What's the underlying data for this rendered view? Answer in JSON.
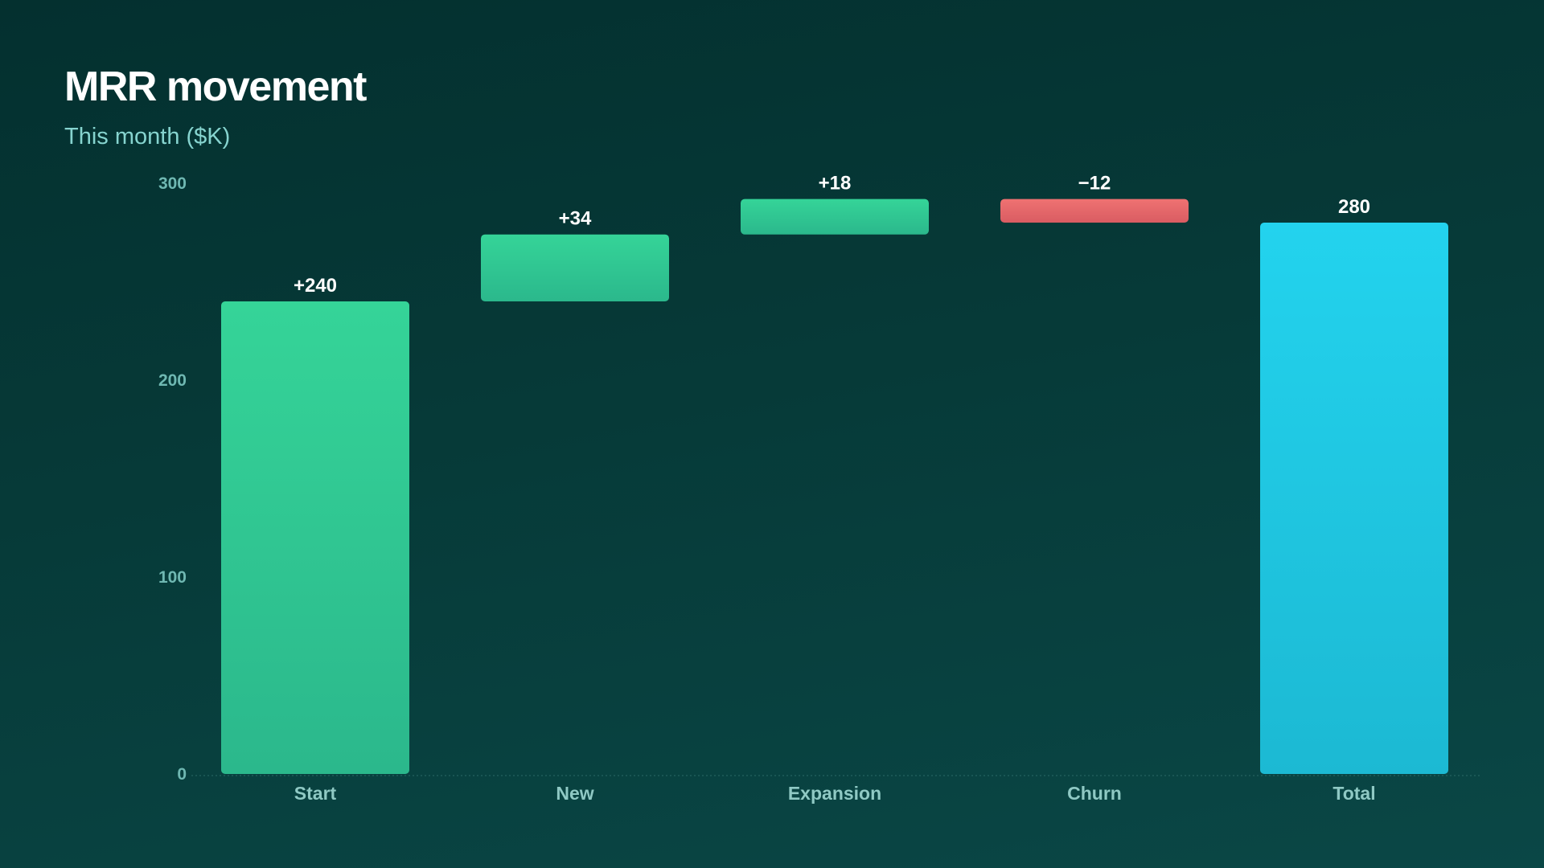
{
  "header": {
    "title": "MRR movement",
    "subtitle": "This month ($K)"
  },
  "colors": {
    "increase_top": "#35d498",
    "increase_bottom": "#2bb88c",
    "decrease_top": "#ef7272",
    "decrease_bottom": "#d95c62",
    "total_top": "#23d3ee",
    "total_bottom": "#1cb9d3",
    "tick": "#6fb8b2",
    "category": "#8fc9c4",
    "baseline": "#2a6966"
  },
  "chart_data": {
    "type": "bar",
    "subtype": "waterfall",
    "title": "MRR movement",
    "subtitle": "This month ($K)",
    "xlabel": "",
    "ylabel": "",
    "ylim": [
      0,
      300
    ],
    "yticks": [
      0,
      100,
      200,
      300
    ],
    "grid": false,
    "categories": [
      "Start",
      "New",
      "Expansion",
      "Churn",
      "Total"
    ],
    "values": [
      240,
      34,
      18,
      -12,
      280
    ],
    "kinds": [
      "increase",
      "increase",
      "increase",
      "decrease",
      "total"
    ],
    "data_labels": [
      "+240",
      "+34",
      "+18",
      "−12",
      "280"
    ]
  }
}
